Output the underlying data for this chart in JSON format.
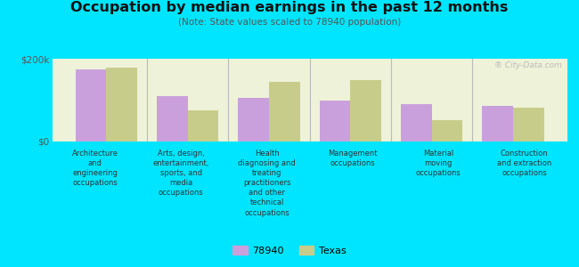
{
  "title": "Occupation by median earnings in the past 12 months",
  "subtitle": "(Note: State values scaled to 78940 population)",
  "categories": [
    "Architecture\nand\nengineering\noccupations",
    "Arts, design,\nentertainment,\nsports, and\nmedia\noccupations",
    "Health\ndiagnosing and\ntreating\npractitioners\nand other\ntechnical\noccupations",
    "Management\noccupations",
    "Material\nmoving\noccupations",
    "Construction\nand extraction\noccupations"
  ],
  "values_78940": [
    175000,
    110000,
    105000,
    100000,
    90000,
    85000
  ],
  "values_texas": [
    178000,
    75000,
    145000,
    148000,
    52000,
    82000
  ],
  "color_78940": "#c9a0dc",
  "color_texas": "#c8cc8a",
  "ylim": [
    0,
    200000
  ],
  "yticks": [
    0,
    200000
  ],
  "ytick_labels": [
    "$0",
    "$200k"
  ],
  "background_color": "#00e5ff",
  "plot_bg_color": "#eef2d8",
  "legend_labels": [
    "78940",
    "Texas"
  ],
  "bar_width": 0.38,
  "watermark": "® City-Data.com"
}
